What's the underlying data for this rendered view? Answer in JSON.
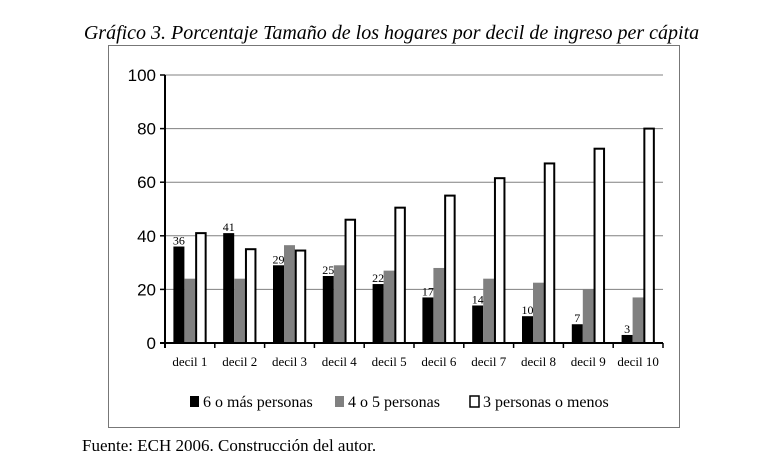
{
  "chart_data": {
    "type": "bar",
    "title": "Gráfico 3. Porcentaje Tamaño de los hogares por decil de ingreso per cápita",
    "categories": [
      "decil 1",
      "decil 2",
      "decil 3",
      "decil 4",
      "decil 5",
      "decil 6",
      "decil 7",
      "decil 8",
      "decil 9",
      "decil 10"
    ],
    "series": [
      {
        "name": "6 o más personas",
        "color": "#000000",
        "values": [
          36,
          41,
          29,
          25,
          22,
          17,
          14,
          10,
          7,
          3
        ],
        "labels": [
          "36",
          "41",
          "29",
          "25",
          "22",
          "17",
          "14",
          "10",
          "7",
          "3"
        ]
      },
      {
        "name": "4 o 5 personas",
        "color": "#808080",
        "values": [
          24,
          24,
          36.5,
          29,
          27,
          28,
          24,
          22.5,
          20,
          17
        ]
      },
      {
        "name": "3 personas o menos",
        "color": "#ffffff",
        "values": [
          41,
          35,
          34.5,
          46,
          50.5,
          55,
          61.5,
          67,
          72.5,
          80
        ]
      }
    ],
    "yticks": [
      "0",
      "20",
      "40",
      "60",
      "80",
      "100"
    ],
    "ylim": [
      0,
      100
    ],
    "grid": true,
    "legend": "bottom",
    "xlabel": "",
    "ylabel": ""
  },
  "source": "Fuente: ECH 2006. Construcción del autor."
}
